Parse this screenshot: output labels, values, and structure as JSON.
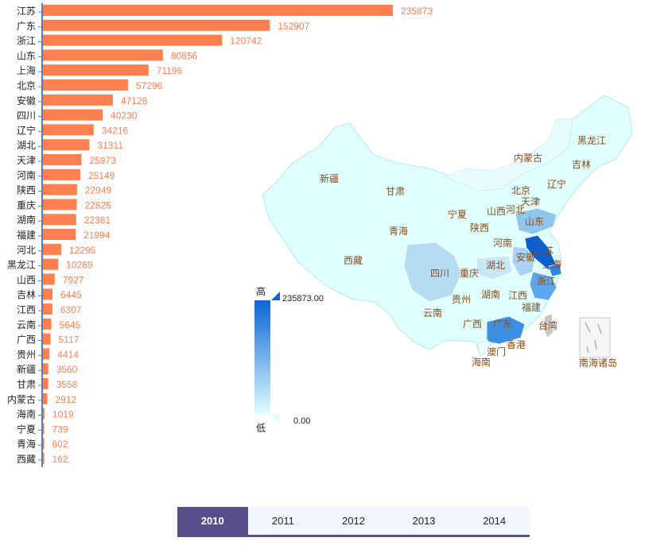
{
  "chart_data": {
    "type": "bar",
    "orientation": "horizontal",
    "categories": [
      "江苏",
      "广东",
      "浙江",
      "山东",
      "上海",
      "北京",
      "安徽",
      "四川",
      "辽宁",
      "湖北",
      "天津",
      "河南",
      "陕西",
      "重庆",
      "湖南",
      "福建",
      "河北",
      "黑龙江",
      "山西",
      "吉林",
      "江西",
      "云南",
      "广西",
      "贵州",
      "新疆",
      "甘肃",
      "内蒙古",
      "海南",
      "宁夏",
      "青海",
      "西藏"
    ],
    "values": [
      235873,
      152907,
      120742,
      80856,
      71196,
      57296,
      47128,
      40230,
      34216,
      31311,
      25973,
      25149,
      22949,
      22825,
      22381,
      21994,
      12295,
      10269,
      7927,
      6445,
      6307,
      5645,
      5117,
      4414,
      3560,
      3558,
      2912,
      1019,
      739,
      602,
      162
    ],
    "xlim": [
      0,
      235873
    ],
    "bar_color": "#ff7f50",
    "axis_color": "#4a7fc1",
    "grid": false,
    "map": {
      "type": "choropleth",
      "labels": [
        "黑龙江",
        "吉林",
        "辽宁",
        "内蒙古",
        "北京",
        "天津",
        "河北",
        "山西",
        "山东",
        "宁夏",
        "甘肃",
        "新疆",
        "陕西",
        "河南",
        "青海",
        "西藏",
        "四川",
        "重庆",
        "湖北",
        "安徽",
        "江苏",
        "上海",
        "浙江",
        "贵州",
        "湖南",
        "江西",
        "福建",
        "云南",
        "广西",
        "广东",
        "台湾",
        "香港",
        "澳门",
        "海南",
        "南海诸岛"
      ],
      "visual_map": {
        "max_label": "235873.00",
        "min_label": "0.00",
        "high_text": "高",
        "low_text": "低",
        "color_high": "#0a64d6",
        "color_low": "#e0ffff"
      }
    }
  },
  "timeline": {
    "years": [
      "2010",
      "2011",
      "2012",
      "2013",
      "2014"
    ],
    "active": "2010"
  }
}
